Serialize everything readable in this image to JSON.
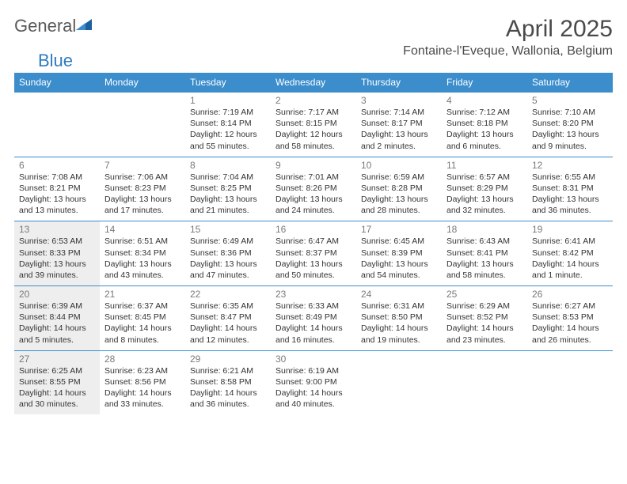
{
  "brand": {
    "word1": "General",
    "word2": "Blue"
  },
  "title": "April 2025",
  "location": "Fontaine-l'Eveque, Wallonia, Belgium",
  "colors": {
    "header_bg": "#3c8dcc",
    "header_text": "#ffffff",
    "daynum_text": "#7a7a7a",
    "body_text": "#333333",
    "shade_bg": "#eeeeee",
    "brand_gray": "#5a5a5a",
    "brand_blue": "#2f7bbf",
    "page_bg": "#ffffff"
  },
  "day_headers": [
    "Sunday",
    "Monday",
    "Tuesday",
    "Wednesday",
    "Thursday",
    "Friday",
    "Saturday"
  ],
  "weeks": [
    [
      {
        "num": "",
        "lines": []
      },
      {
        "num": "",
        "lines": []
      },
      {
        "num": "1",
        "lines": [
          "Sunrise: 7:19 AM",
          "Sunset: 8:14 PM",
          "Daylight: 12 hours",
          "and 55 minutes."
        ]
      },
      {
        "num": "2",
        "lines": [
          "Sunrise: 7:17 AM",
          "Sunset: 8:15 PM",
          "Daylight: 12 hours",
          "and 58 minutes."
        ]
      },
      {
        "num": "3",
        "lines": [
          "Sunrise: 7:14 AM",
          "Sunset: 8:17 PM",
          "Daylight: 13 hours",
          "and 2 minutes."
        ]
      },
      {
        "num": "4",
        "lines": [
          "Sunrise: 7:12 AM",
          "Sunset: 8:18 PM",
          "Daylight: 13 hours",
          "and 6 minutes."
        ]
      },
      {
        "num": "5",
        "lines": [
          "Sunrise: 7:10 AM",
          "Sunset: 8:20 PM",
          "Daylight: 13 hours",
          "and 9 minutes."
        ]
      }
    ],
    [
      {
        "num": "6",
        "lines": [
          "Sunrise: 7:08 AM",
          "Sunset: 8:21 PM",
          "Daylight: 13 hours",
          "and 13 minutes."
        ]
      },
      {
        "num": "7",
        "lines": [
          "Sunrise: 7:06 AM",
          "Sunset: 8:23 PM",
          "Daylight: 13 hours",
          "and 17 minutes."
        ]
      },
      {
        "num": "8",
        "lines": [
          "Sunrise: 7:04 AM",
          "Sunset: 8:25 PM",
          "Daylight: 13 hours",
          "and 21 minutes."
        ]
      },
      {
        "num": "9",
        "lines": [
          "Sunrise: 7:01 AM",
          "Sunset: 8:26 PM",
          "Daylight: 13 hours",
          "and 24 minutes."
        ]
      },
      {
        "num": "10",
        "lines": [
          "Sunrise: 6:59 AM",
          "Sunset: 8:28 PM",
          "Daylight: 13 hours",
          "and 28 minutes."
        ]
      },
      {
        "num": "11",
        "lines": [
          "Sunrise: 6:57 AM",
          "Sunset: 8:29 PM",
          "Daylight: 13 hours",
          "and 32 minutes."
        ]
      },
      {
        "num": "12",
        "lines": [
          "Sunrise: 6:55 AM",
          "Sunset: 8:31 PM",
          "Daylight: 13 hours",
          "and 36 minutes."
        ]
      }
    ],
    [
      {
        "num": "13",
        "lines": [
          "Sunrise: 6:53 AM",
          "Sunset: 8:33 PM",
          "Daylight: 13 hours",
          "and 39 minutes."
        ]
      },
      {
        "num": "14",
        "lines": [
          "Sunrise: 6:51 AM",
          "Sunset: 8:34 PM",
          "Daylight: 13 hours",
          "and 43 minutes."
        ]
      },
      {
        "num": "15",
        "lines": [
          "Sunrise: 6:49 AM",
          "Sunset: 8:36 PM",
          "Daylight: 13 hours",
          "and 47 minutes."
        ]
      },
      {
        "num": "16",
        "lines": [
          "Sunrise: 6:47 AM",
          "Sunset: 8:37 PM",
          "Daylight: 13 hours",
          "and 50 minutes."
        ]
      },
      {
        "num": "17",
        "lines": [
          "Sunrise: 6:45 AM",
          "Sunset: 8:39 PM",
          "Daylight: 13 hours",
          "and 54 minutes."
        ]
      },
      {
        "num": "18",
        "lines": [
          "Sunrise: 6:43 AM",
          "Sunset: 8:41 PM",
          "Daylight: 13 hours",
          "and 58 minutes."
        ]
      },
      {
        "num": "19",
        "lines": [
          "Sunrise: 6:41 AM",
          "Sunset: 8:42 PM",
          "Daylight: 14 hours",
          "and 1 minute."
        ]
      }
    ],
    [
      {
        "num": "20",
        "lines": [
          "Sunrise: 6:39 AM",
          "Sunset: 8:44 PM",
          "Daylight: 14 hours",
          "and 5 minutes."
        ]
      },
      {
        "num": "21",
        "lines": [
          "Sunrise: 6:37 AM",
          "Sunset: 8:45 PM",
          "Daylight: 14 hours",
          "and 8 minutes."
        ]
      },
      {
        "num": "22",
        "lines": [
          "Sunrise: 6:35 AM",
          "Sunset: 8:47 PM",
          "Daylight: 14 hours",
          "and 12 minutes."
        ]
      },
      {
        "num": "23",
        "lines": [
          "Sunrise: 6:33 AM",
          "Sunset: 8:49 PM",
          "Daylight: 14 hours",
          "and 16 minutes."
        ]
      },
      {
        "num": "24",
        "lines": [
          "Sunrise: 6:31 AM",
          "Sunset: 8:50 PM",
          "Daylight: 14 hours",
          "and 19 minutes."
        ]
      },
      {
        "num": "25",
        "lines": [
          "Sunrise: 6:29 AM",
          "Sunset: 8:52 PM",
          "Daylight: 14 hours",
          "and 23 minutes."
        ]
      },
      {
        "num": "26",
        "lines": [
          "Sunrise: 6:27 AM",
          "Sunset: 8:53 PM",
          "Daylight: 14 hours",
          "and 26 minutes."
        ]
      }
    ],
    [
      {
        "num": "27",
        "lines": [
          "Sunrise: 6:25 AM",
          "Sunset: 8:55 PM",
          "Daylight: 14 hours",
          "and 30 minutes."
        ]
      },
      {
        "num": "28",
        "lines": [
          "Sunrise: 6:23 AM",
          "Sunset: 8:56 PM",
          "Daylight: 14 hours",
          "and 33 minutes."
        ]
      },
      {
        "num": "29",
        "lines": [
          "Sunrise: 6:21 AM",
          "Sunset: 8:58 PM",
          "Daylight: 14 hours",
          "and 36 minutes."
        ]
      },
      {
        "num": "30",
        "lines": [
          "Sunrise: 6:19 AM",
          "Sunset: 9:00 PM",
          "Daylight: 14 hours",
          "and 40 minutes."
        ]
      },
      {
        "num": "",
        "lines": []
      },
      {
        "num": "",
        "lines": []
      },
      {
        "num": "",
        "lines": []
      }
    ]
  ],
  "shaded_days": [
    "13",
    "20",
    "27"
  ]
}
